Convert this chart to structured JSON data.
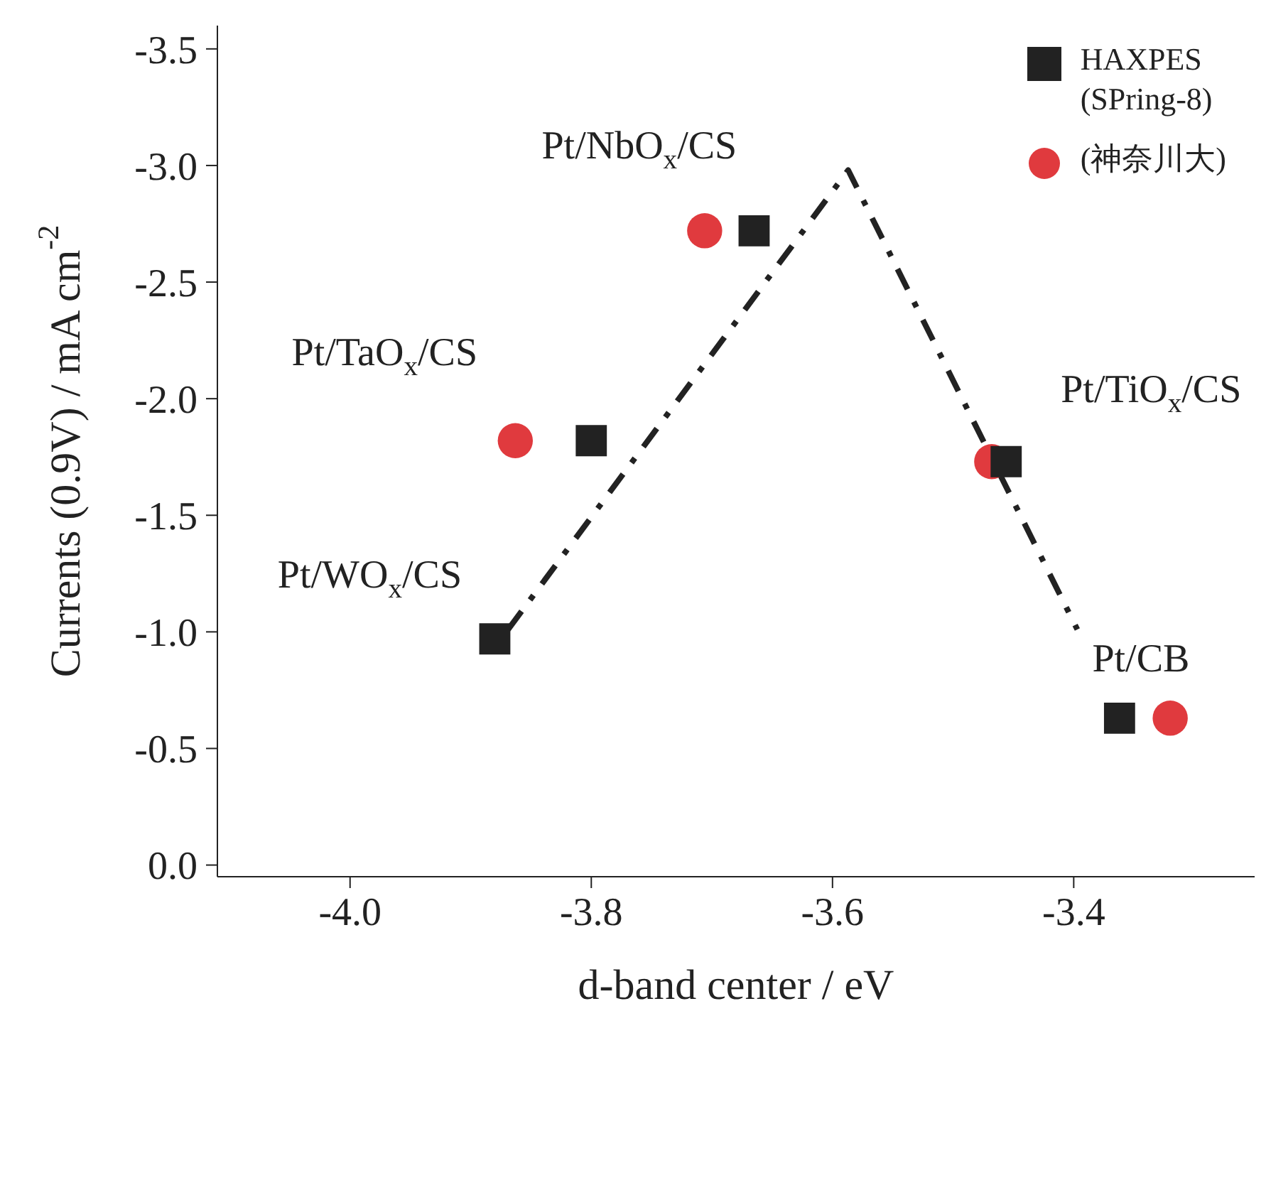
{
  "chart_data": {
    "type": "scatter",
    "xlabel": "d-band center / eV",
    "ylabel": "Currents (0.9V) / mA cm$^{-2}$",
    "xlim": [
      -4.11,
      -3.25
    ],
    "xticks": [
      {
        "value": -4.0,
        "label": "-4.0"
      },
      {
        "value": -3.8,
        "label": "-3.8"
      },
      {
        "value": -3.6,
        "label": "-3.6"
      },
      {
        "value": -3.4,
        "label": "-3.4"
      }
    ],
    "ylim": [
      0.05,
      -3.6
    ],
    "yticks": [
      {
        "value": 0,
        "label": "0.0"
      },
      {
        "value": -0.5,
        "label": "-0.5"
      },
      {
        "value": -1.0,
        "label": "-1.0"
      },
      {
        "value": -1.5,
        "label": "-1.5"
      },
      {
        "value": -2.0,
        "label": "-2.0"
      },
      {
        "value": -2.5,
        "label": "-2.5"
      },
      {
        "value": -3.0,
        "label": "-3.0"
      },
      {
        "value": -3.5,
        "label": "-3.5"
      }
    ],
    "grid": false,
    "legend": "top right",
    "series": [
      {
        "name": "HAXPES\n(SPring-8)",
        "marker": "square",
        "color": "#222222",
        "x": [
          -3.88,
          -3.8,
          -3.665,
          -3.456,
          -3.362
        ],
        "values": [
          -0.97,
          -1.82,
          -2.72,
          -1.73,
          -0.63
        ]
      },
      {
        "name": "(神奈川大)",
        "marker": "circle",
        "color": "#e03a3e",
        "x": [
          -3.863,
          -3.706,
          -3.468,
          -3.32
        ],
        "values": [
          -1.82,
          -2.72,
          -1.73,
          -0.63
        ]
      },
      {
        "type": "line",
        "marker": "none",
        "line_style": "dashed",
        "color": "#222222",
        "x": [
          -3.869,
          -3.587,
          -3.397
        ],
        "values": [
          -1.01,
          -2.98,
          -1.01
        ]
      }
    ],
    "annotations": [
      {
        "text": "Pt/NbO$_{x}$/CS",
        "x": -3.706,
        "y": -2.72
      },
      {
        "text": "Pt/TaO$_{x}$/CS",
        "x": -3.863,
        "y": -1.82
      },
      {
        "text": "Pt/TiO$_{x}$/CS",
        "x": -3.456,
        "y": -1.73
      },
      {
        "text": "Pt/WO$_{x}$/CS",
        "x": -3.88,
        "y": -0.97
      },
      {
        "text": "Pt/CB",
        "x": -3.362,
        "y": -0.63
      }
    ]
  }
}
